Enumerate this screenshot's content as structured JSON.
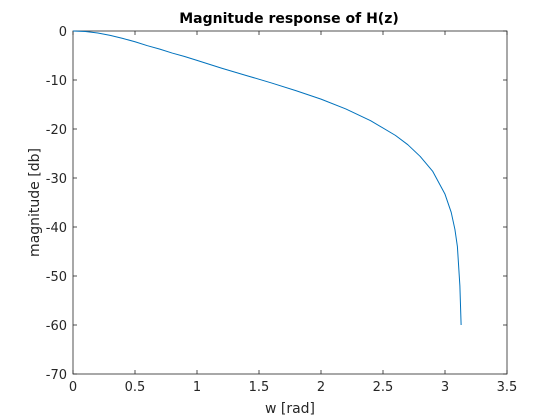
{
  "chart_data": {
    "type": "line",
    "title": "Magnitude response of H(z)",
    "xlabel": "w [rad]",
    "ylabel": "magnitude [db]",
    "xlim": [
      0,
      3.5
    ],
    "ylim": [
      -70,
      0
    ],
    "xticks": [
      0,
      0.5,
      1,
      1.5,
      2,
      2.5,
      3,
      3.5
    ],
    "xtick_labels": [
      "0",
      "0.5",
      "1",
      "1.5",
      "2",
      "2.5",
      "3",
      "3.5"
    ],
    "yticks": [
      0,
      -10,
      -20,
      -30,
      -40,
      -50,
      -60,
      -70
    ],
    "ytick_labels": [
      "0",
      "-10",
      "-20",
      "-30",
      "-40",
      "-50",
      "-60",
      "-70"
    ],
    "grid": false,
    "series": [
      {
        "color": "#0072BD",
        "x": [
          0,
          0.1,
          0.2,
          0.3,
          0.4,
          0.5,
          0.6,
          0.7,
          0.8,
          0.9,
          1.0,
          1.2,
          1.4,
          1.6,
          1.8,
          2.0,
          2.2,
          2.4,
          2.6,
          2.7,
          2.8,
          2.9,
          3.0,
          3.05,
          3.08,
          3.1,
          3.12,
          3.13
        ],
        "y": [
          0,
          -0.1,
          -0.4,
          -0.9,
          -1.5,
          -2.2,
          -3.0,
          -3.7,
          -4.5,
          -5.2,
          -6.0,
          -7.6,
          -9.1,
          -10.6,
          -12.2,
          -13.9,
          -15.9,
          -18.3,
          -21.3,
          -23.2,
          -25.6,
          -28.6,
          -33.3,
          -37.0,
          -40.5,
          -44.0,
          -52.0,
          -60.0
        ]
      }
    ]
  }
}
